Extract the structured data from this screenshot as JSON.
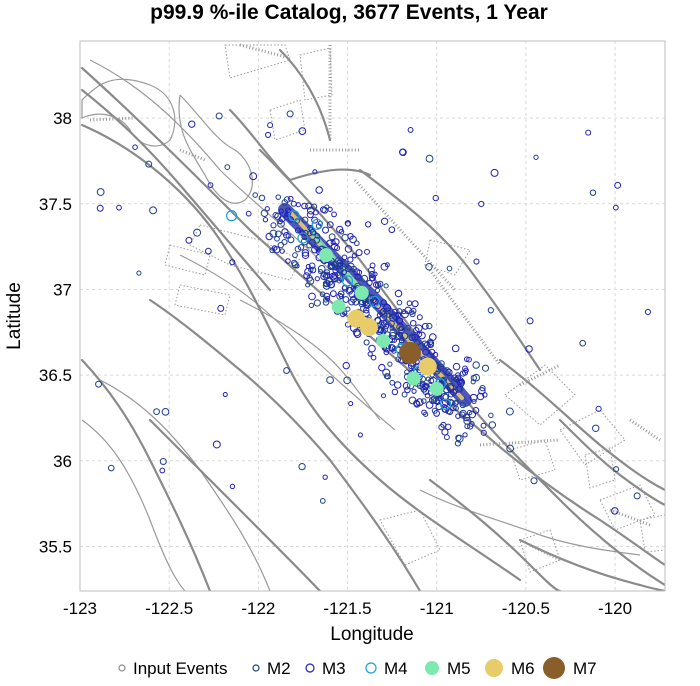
{
  "chart_data": {
    "type": "scatter",
    "title": "p99.9 %-ile Catalog, 3677 Events, 1 Year",
    "xlabel": "Longitude",
    "ylabel": "Latitude",
    "xlim": [
      -123,
      -119.72
    ],
    "ylim": [
      35.24,
      38.45
    ],
    "xticks": [
      -123,
      -122.5,
      -122,
      -121.5,
      -121,
      -120.5,
      -120
    ],
    "xtick_labels": [
      "-123",
      "-122.5",
      "-122",
      "-121.5",
      "-121",
      "-120.5",
      "-120"
    ],
    "yticks": [
      35.5,
      36,
      36.5,
      37,
      37.5,
      38
    ],
    "ytick_labels": [
      "35.5",
      "36",
      "36.5",
      "37",
      "37.5",
      "38"
    ],
    "grid": true,
    "legend_position": "bottom",
    "legend": [
      {
        "label": "Input Events",
        "color": "#8c8c8c",
        "marker": "open-circle",
        "size": 3
      },
      {
        "label": "M2",
        "color": "#1f3f8f",
        "marker": "open-circle",
        "size": 3
      },
      {
        "label": "M3",
        "color": "#2020b8",
        "marker": "open-circle",
        "size": 4
      },
      {
        "label": "M4",
        "color": "#1e9fd8",
        "marker": "open-circle",
        "size": 5
      },
      {
        "label": "M5",
        "color": "#7de8b0",
        "marker": "filled-circle",
        "size": 7
      },
      {
        "label": "M6",
        "color": "#e8cc6a",
        "marker": "filled-circle",
        "size": 9
      },
      {
        "label": "M7",
        "color": "#8a5e2b",
        "marker": "filled-circle",
        "size": 11
      }
    ],
    "series": [
      {
        "name": "M7",
        "color": "#8a5e2b",
        "points": [
          [
            -121.15,
            36.63
          ]
        ]
      },
      {
        "name": "M6",
        "color": "#e8cc6a",
        "points": [
          [
            -121.45,
            36.83
          ],
          [
            -121.38,
            36.78
          ],
          [
            -121.05,
            36.55
          ]
        ]
      },
      {
        "name": "M5",
        "color": "#7de8b0",
        "points": [
          [
            -121.13,
            36.48
          ],
          [
            -121.42,
            36.98
          ],
          [
            -121.55,
            36.9
          ],
          [
            -121.62,
            37.2
          ],
          [
            -121.3,
            36.7
          ],
          [
            -121.0,
            36.42
          ]
        ]
      },
      {
        "name": "M4",
        "color": "#1e9fd8",
        "points": [
          [
            -122.15,
            37.43
          ],
          [
            -121.67,
            37.38
          ],
          [
            -121.5,
            37.05
          ],
          [
            -121.75,
            37.3
          ],
          [
            -121.2,
            36.65
          ],
          [
            -120.95,
            36.33
          ],
          [
            -121.35,
            36.93
          ],
          [
            -121.8,
            37.43
          ],
          [
            -121.1,
            36.52
          ],
          [
            -120.98,
            36.45
          ]
        ]
      }
    ]
  }
}
